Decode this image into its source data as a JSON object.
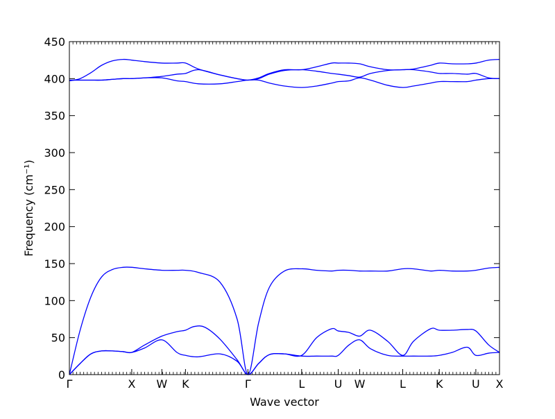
{
  "chart_data": {
    "type": "line",
    "title": "",
    "xlabel": "Wave vector",
    "ylabel": "Frequency (cm⁻¹)",
    "ylim": [
      0,
      450
    ],
    "yticks": [
      0,
      50,
      100,
      150,
      200,
      250,
      300,
      350,
      400,
      450
    ],
    "xlim": [
      0,
      20
    ],
    "high_symmetry_points": [
      {
        "label": "Γ",
        "x": 0
      },
      {
        "label": "X",
        "x": 2.9
      },
      {
        "label": "W",
        "x": 4.3
      },
      {
        "label": "K",
        "x": 5.4
      },
      {
        "label": "Γ",
        "x": 8.3
      },
      {
        "label": "L",
        "x": 10.8
      },
      {
        "label": "U",
        "x": 12.5
      },
      {
        "label": "W",
        "x": 13.5
      },
      {
        "label": "L",
        "x": 15.5
      },
      {
        "label": "K",
        "x": 17.2
      },
      {
        "label": "U",
        "x": 18.9
      },
      {
        "label": "X",
        "x": 20
      }
    ],
    "color": "#0000ff",
    "series": [
      {
        "x": [
          0,
          0.5,
          1,
          1.5,
          2,
          2.5,
          2.9,
          3.5,
          4.3,
          5,
          5.4,
          6,
          7,
          7.8,
          8.3,
          8.8,
          9.3,
          10,
          10.8,
          11.5,
          12.2,
          12.5,
          13,
          13.5,
          14,
          14.8,
          15.5,
          16,
          16.8,
          17.2,
          17.8,
          18.5,
          18.9,
          19.5,
          20
        ],
        "values": [
          0,
          15,
          28,
          32,
          32,
          31,
          30,
          36,
          47,
          30,
          26,
          24,
          28,
          18,
          0,
          15,
          27,
          28,
          25,
          25,
          25,
          26,
          40,
          47,
          35,
          26,
          25,
          25,
          25,
          26,
          30,
          37,
          26,
          29,
          30
        ]
      },
      {
        "x": [
          0,
          0.5,
          1,
          1.5,
          2,
          2.5,
          2.9,
          3.5,
          4.3,
          5,
          5.4,
          5.8,
          6.3,
          7,
          7.8,
          8.3,
          8.8,
          9.3,
          10,
          10.8,
          11.5,
          12.2,
          12.5,
          13,
          13.5,
          14,
          14.8,
          15.5,
          16,
          16.8,
          17.2,
          17.8,
          18.5,
          18.9,
          19.5,
          20
        ],
        "values": [
          0,
          15,
          28,
          32,
          32,
          31,
          30,
          40,
          52,
          58,
          60,
          65,
          64,
          48,
          20,
          0,
          15,
          27,
          28,
          26,
          50,
          62,
          59,
          57,
          52,
          60,
          45,
          26,
          45,
          62,
          60,
          60,
          61,
          59,
          40,
          30
        ]
      },
      {
        "x": [
          0,
          0.5,
          1,
          1.5,
          2,
          2.5,
          2.9,
          3.5,
          4.3,
          5,
          5.4,
          6,
          7,
          7.8,
          8.3,
          8.8,
          9.3,
          10,
          10.8,
          11.5,
          12.2,
          12.5,
          13,
          13.5,
          14,
          14.8,
          15.5,
          16,
          16.8,
          17.2,
          17.8,
          18.5,
          18.9,
          19.5,
          20
        ],
        "values": [
          0,
          60,
          105,
          132,
          142,
          145,
          145,
          143,
          141,
          141,
          141,
          138,
          125,
          75,
          0,
          70,
          118,
          140,
          143,
          141,
          140,
          141,
          141,
          140,
          140,
          140,
          143,
          143,
          140,
          141,
          140,
          140,
          141,
          144,
          145
        ]
      },
      {
        "x": [
          0,
          0.5,
          1,
          1.5,
          2,
          2.5,
          2.9,
          3.5,
          4.3,
          5,
          5.4,
          6,
          7,
          7.8,
          8.3,
          8.8,
          9.3,
          10,
          10.8,
          11.5,
          12.2,
          12.5,
          13,
          13.5,
          14,
          14.8,
          15.5,
          16,
          16.8,
          17.2,
          17.8,
          18.5,
          18.9,
          19.5,
          20
        ],
        "values": [
          398,
          398,
          398,
          398,
          399,
          400,
          400,
          401,
          401,
          397,
          396,
          393,
          393,
          396,
          398,
          398,
          394,
          390,
          388,
          390,
          394,
          396,
          397,
          401,
          398,
          391,
          388,
          390,
          394,
          396,
          396,
          396,
          398,
          400,
          400
        ]
      },
      {
        "x": [
          0,
          0.5,
          1,
          1.5,
          2,
          2.5,
          2.9,
          3.5,
          4.3,
          5,
          5.4,
          6,
          7,
          7.8,
          8.3,
          8.8,
          9.3,
          10,
          10.8,
          11.5,
          12.2,
          12.5,
          13,
          13.5,
          14,
          14.8,
          15.5,
          16,
          16.8,
          17.2,
          17.8,
          18.5,
          18.9,
          19.5,
          20
        ],
        "values": [
          398,
          398,
          398,
          398,
          399,
          400,
          400,
          401,
          403,
          406,
          407,
          412,
          405,
          400,
          398,
          400,
          406,
          411,
          412,
          410,
          407,
          406,
          404,
          402,
          407,
          411,
          412,
          412,
          409,
          407,
          407,
          406,
          407,
          401,
          400
        ]
      },
      {
        "x": [
          0,
          0.5,
          1,
          1.5,
          2,
          2.5,
          2.9,
          3.5,
          4.3,
          5,
          5.4,
          6,
          7,
          7.8,
          8.3,
          8.8,
          9.3,
          10,
          10.8,
          11.5,
          12.2,
          12.5,
          13,
          13.5,
          14,
          14.8,
          15.5,
          16,
          16.8,
          17.2,
          17.8,
          18.5,
          18.9,
          19.5,
          20
        ],
        "values": [
          397,
          400,
          408,
          418,
          424,
          426,
          425,
          423,
          421,
          421,
          421,
          413,
          405,
          400,
          398,
          401,
          407,
          412,
          412,
          416,
          421,
          421,
          421,
          420,
          416,
          412,
          412,
          413,
          418,
          421,
          420,
          420,
          421,
          425,
          426
        ]
      }
    ]
  }
}
